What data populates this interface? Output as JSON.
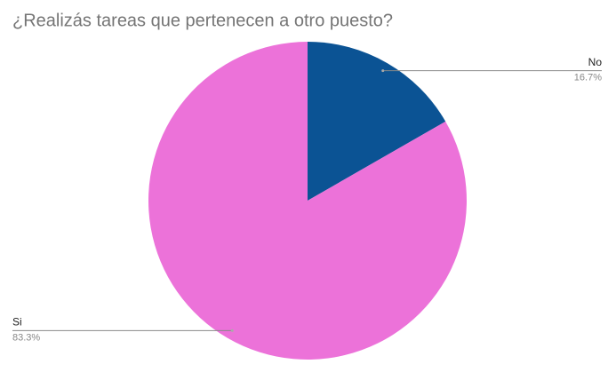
{
  "chart_data": {
    "type": "pie",
    "title": "¿Realizás tareas que pertenecen a otro puesto?",
    "categories": [
      "No",
      "Si"
    ],
    "values": [
      16.7,
      83.3
    ],
    "value_labels": [
      "16.7%",
      "83.3%"
    ],
    "colors": [
      "#0b5394",
      "#ec72d9"
    ]
  }
}
